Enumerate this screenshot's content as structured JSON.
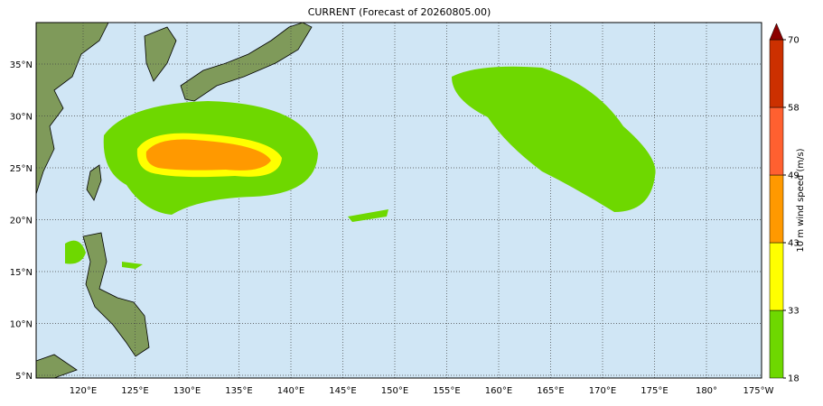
{
  "title": "CURRENT (Forecast of 20260805.00)",
  "map": {
    "lat_labels": [
      "35°N",
      "30°N",
      "25°N",
      "20°N",
      "15°N",
      "10°N",
      "5°N"
    ],
    "lon_labels": [
      "120°E",
      "125°E",
      "130°E",
      "135°E",
      "140°E",
      "145°E",
      "150°E",
      "155°E",
      "160°E",
      "165°E",
      "170°E",
      "175°E",
      "180°",
      "175°W"
    ]
  },
  "colorbar": {
    "label": "10 m wind speed (m/s)",
    "ticks": [
      18,
      33,
      43,
      49,
      58,
      70
    ],
    "colors": [
      "#6ed800",
      "#ffff00",
      "#ff9900",
      "#ff6030",
      "#cc3000"
    ],
    "extend_color": "#8b0000"
  }
}
